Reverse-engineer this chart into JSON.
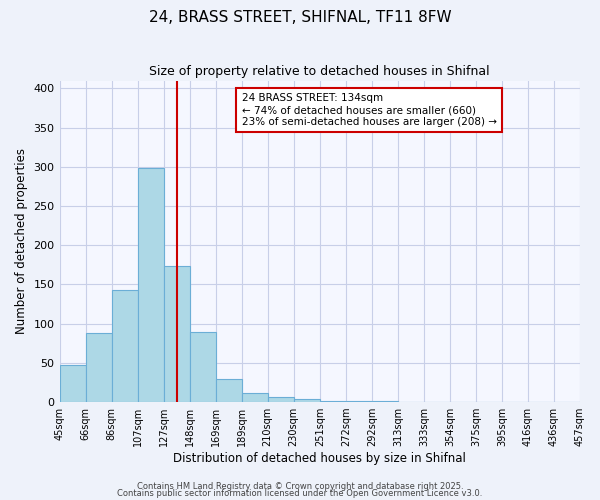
{
  "title": "24, BRASS STREET, SHIFNAL, TF11 8FW",
  "subtitle": "Size of property relative to detached houses in Shifnal",
  "xlabel": "Distribution of detached houses by size in Shifnal",
  "ylabel": "Number of detached properties",
  "bin_edges": [
    "45sqm",
    "66sqm",
    "86sqm",
    "107sqm",
    "127sqm",
    "148sqm",
    "169sqm",
    "189sqm",
    "210sqm",
    "230sqm",
    "251sqm",
    "272sqm",
    "292sqm",
    "313sqm",
    "333sqm",
    "354sqm",
    "375sqm",
    "395sqm",
    "416sqm",
    "436sqm",
    "457sqm"
  ],
  "bar_values": [
    47,
    88,
    143,
    298,
    173,
    90,
    30,
    12,
    7,
    4,
    2,
    1,
    1,
    0,
    0,
    0,
    0,
    0,
    0,
    0
  ],
  "bar_color": "#add8e6",
  "bar_edge_color": "#6baed6",
  "vline_color": "#cc0000",
  "vline_pos": 4.5,
  "ylim": [
    0,
    410
  ],
  "yticks": [
    0,
    50,
    100,
    150,
    200,
    250,
    300,
    350,
    400
  ],
  "annotation_title": "24 BRASS STREET: 134sqm",
  "annotation_line1": "← 74% of detached houses are smaller (660)",
  "annotation_line2": "23% of semi-detached houses are larger (208) →",
  "annotation_box_color": "#ffffff",
  "annotation_box_edge_color": "#cc0000",
  "footer1": "Contains HM Land Registry data © Crown copyright and database right 2025.",
  "footer2": "Contains public sector information licensed under the Open Government Licence v3.0.",
  "background_color": "#eef2fa",
  "plot_background_color": "#f5f7ff",
  "grid_color": "#c8cfe8"
}
